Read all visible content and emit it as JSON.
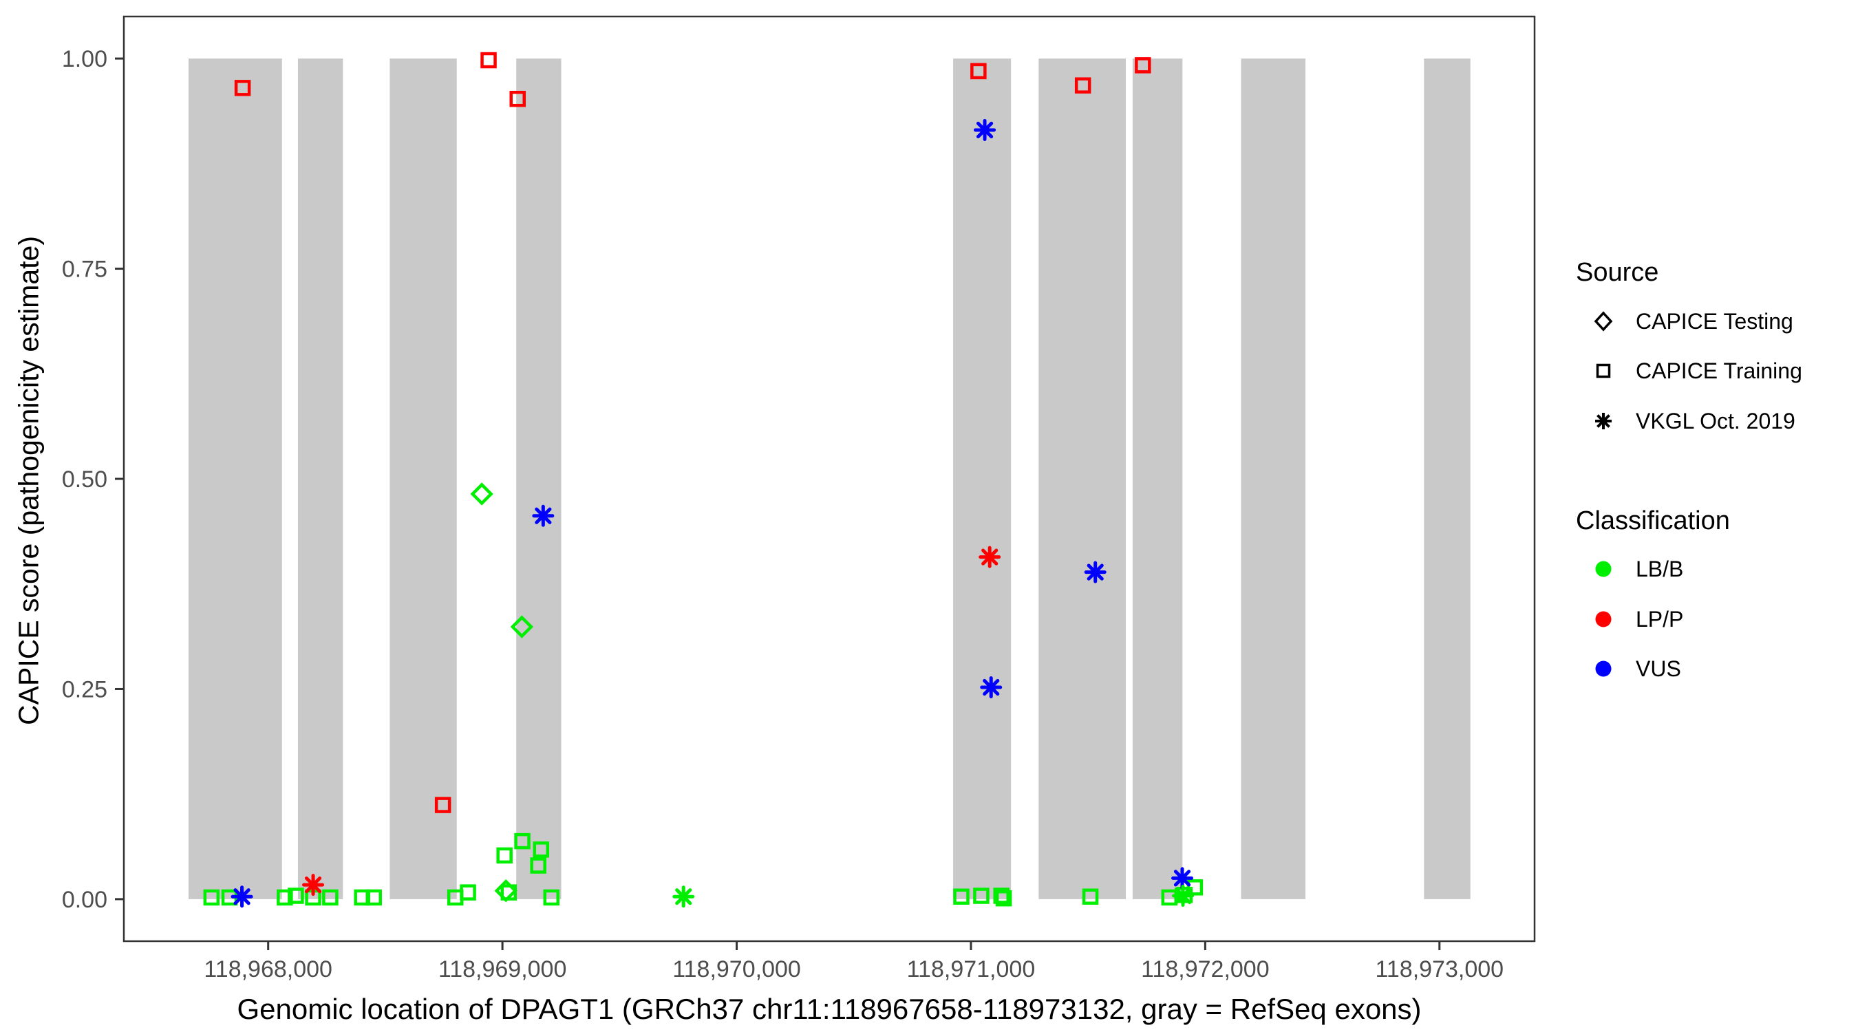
{
  "figure": {
    "background": "#ffffff",
    "panel_border_color": "#333333",
    "tick_label_color": "#4d4d4d",
    "exon_color": "#c9c9c9"
  },
  "chart_data": {
    "type": "scatter",
    "title": "",
    "xlabel": "Genomic location of DPAGT1 (GRCh37 chr11:118967658-118973132, gray = RefSeq exons)",
    "ylabel": "CAPICE score (pathogenicity estimate)",
    "xlim": [
      118967384,
      118973406
    ],
    "ylim": [
      -0.05,
      1.05
    ],
    "grid": false,
    "legend_position": "right",
    "x_ticks": [
      {
        "value": 118968000,
        "label": "118,968,000"
      },
      {
        "value": 118969000,
        "label": "118,969,000"
      },
      {
        "value": 118970000,
        "label": "118,970,000"
      },
      {
        "value": 118971000,
        "label": "118,971,000"
      },
      {
        "value": 118972000,
        "label": "118,972,000"
      },
      {
        "value": 118973000,
        "label": "118,973,000"
      }
    ],
    "y_ticks": [
      {
        "value": 0.0,
        "label": "0.00"
      },
      {
        "value": 0.25,
        "label": "0.25"
      },
      {
        "value": 0.5,
        "label": "0.50"
      },
      {
        "value": 0.75,
        "label": "0.75"
      },
      {
        "value": 1.0,
        "label": "1.00"
      }
    ],
    "exons": {
      "meaning": "gray = RefSeq exons",
      "color": "#c9c9c9",
      "ymin": 0,
      "ymax": 1,
      "ranges": [
        [
          118967660,
          118968059
        ],
        [
          118968127,
          118968319
        ],
        [
          118968519,
          118968805
        ],
        [
          118969059,
          118969251
        ],
        [
          118970924,
          118971171
        ],
        [
          118971289,
          118971661
        ],
        [
          118971690,
          118971903
        ],
        [
          118972153,
          118972428
        ],
        [
          118972934,
          118973132
        ]
      ]
    },
    "shape_by_source": {
      "CAPICE Testing": "diamond",
      "CAPICE Training": "square",
      "VKGL Oct. 2019": "asterisk"
    },
    "color_by_classification": {
      "LB/B": "#00ee00",
      "LP/P": "#ff0000",
      "VUS": "#0000ff"
    },
    "points": [
      {
        "x": 118967758,
        "y": 0.002,
        "source": "CAPICE Training",
        "classification": "LB/B"
      },
      {
        "x": 118967835,
        "y": 0.002,
        "source": "CAPICE Training",
        "classification": "LB/B"
      },
      {
        "x": 118968071,
        "y": 0.002,
        "source": "CAPICE Training",
        "classification": "LB/B"
      },
      {
        "x": 118968118,
        "y": 0.004,
        "source": "CAPICE Training",
        "classification": "LB/B"
      },
      {
        "x": 118968192,
        "y": 0.002,
        "source": "CAPICE Training",
        "classification": "LB/B"
      },
      {
        "x": 118968265,
        "y": 0.002,
        "source": "CAPICE Training",
        "classification": "LB/B"
      },
      {
        "x": 118968401,
        "y": 0.002,
        "source": "CAPICE Training",
        "classification": "LB/B"
      },
      {
        "x": 118968451,
        "y": 0.002,
        "source": "CAPICE Training",
        "classification": "LB/B"
      },
      {
        "x": 118968799,
        "y": 0.002,
        "source": "CAPICE Training",
        "classification": "LB/B"
      },
      {
        "x": 118968853,
        "y": 0.008,
        "source": "CAPICE Training",
        "classification": "LB/B"
      },
      {
        "x": 118969009,
        "y": 0.052,
        "source": "CAPICE Training",
        "classification": "LB/B"
      },
      {
        "x": 118969027,
        "y": 0.008,
        "source": "CAPICE Training",
        "classification": "LB/B"
      },
      {
        "x": 118969085,
        "y": 0.069,
        "source": "CAPICE Training",
        "classification": "LB/B"
      },
      {
        "x": 118969153,
        "y": 0.04,
        "source": "CAPICE Training",
        "classification": "LB/B"
      },
      {
        "x": 118969165,
        "y": 0.059,
        "source": "CAPICE Training",
        "classification": "LB/B"
      },
      {
        "x": 118969209,
        "y": 0.002,
        "source": "CAPICE Training",
        "classification": "LB/B"
      },
      {
        "x": 118970959,
        "y": 0.003,
        "source": "CAPICE Training",
        "classification": "LB/B"
      },
      {
        "x": 118971044,
        "y": 0.004,
        "source": "CAPICE Training",
        "classification": "LB/B"
      },
      {
        "x": 118971130,
        "y": 0.004,
        "source": "CAPICE Training",
        "classification": "LB/B"
      },
      {
        "x": 118971140,
        "y": 0.001,
        "source": "CAPICE Training",
        "classification": "LB/B"
      },
      {
        "x": 118971510,
        "y": 0.003,
        "source": "CAPICE Training",
        "classification": "LB/B"
      },
      {
        "x": 118971847,
        "y": 0.002,
        "source": "CAPICE Training",
        "classification": "LB/B"
      },
      {
        "x": 118971912,
        "y": 0.005,
        "source": "CAPICE Training",
        "classification": "LB/B"
      },
      {
        "x": 118971956,
        "y": 0.014,
        "source": "CAPICE Training",
        "classification": "LB/B"
      },
      {
        "x": 118967891,
        "y": 0.965,
        "source": "CAPICE Training",
        "classification": "LP/P"
      },
      {
        "x": 118968746,
        "y": 0.112,
        "source": "CAPICE Training",
        "classification": "LP/P"
      },
      {
        "x": 118968941,
        "y": 0.998,
        "source": "CAPICE Training",
        "classification": "LP/P"
      },
      {
        "x": 118969065,
        "y": 0.952,
        "source": "CAPICE Training",
        "classification": "LP/P"
      },
      {
        "x": 118971032,
        "y": 0.985,
        "source": "CAPICE Training",
        "classification": "LP/P"
      },
      {
        "x": 118971478,
        "y": 0.968,
        "source": "CAPICE Training",
        "classification": "LP/P"
      },
      {
        "x": 118971734,
        "y": 0.992,
        "source": "CAPICE Training",
        "classification": "LP/P"
      },
      {
        "x": 118968912,
        "y": 0.482,
        "source": "CAPICE Testing",
        "classification": "LB/B"
      },
      {
        "x": 118969015,
        "y": 0.01,
        "source": "CAPICE Testing",
        "classification": "LB/B"
      },
      {
        "x": 118969083,
        "y": 0.324,
        "source": "CAPICE Testing",
        "classification": "LB/B"
      },
      {
        "x": 118967888,
        "y": 0.003,
        "source": "VKGL Oct. 2019",
        "classification": "VUS"
      },
      {
        "x": 118968192,
        "y": 0.017,
        "source": "VKGL Oct. 2019",
        "classification": "LP/P"
      },
      {
        "x": 118969174,
        "y": 0.456,
        "source": "VKGL Oct. 2019",
        "classification": "VUS"
      },
      {
        "x": 118969773,
        "y": 0.003,
        "source": "VKGL Oct. 2019",
        "classification": "LB/B"
      },
      {
        "x": 118971059,
        "y": 0.915,
        "source": "VKGL Oct. 2019",
        "classification": "VUS"
      },
      {
        "x": 118971080,
        "y": 0.407,
        "source": "VKGL Oct. 2019",
        "classification": "LP/P"
      },
      {
        "x": 118971086,
        "y": 0.252,
        "source": "VKGL Oct. 2019",
        "classification": "VUS"
      },
      {
        "x": 118971531,
        "y": 0.389,
        "source": "VKGL Oct. 2019",
        "classification": "VUS"
      },
      {
        "x": 118971902,
        "y": 0.025,
        "source": "VKGL Oct. 2019",
        "classification": "VUS"
      },
      {
        "x": 118971905,
        "y": 0.004,
        "source": "VKGL Oct. 2019",
        "classification": "LB/B"
      }
    ]
  },
  "legend": {
    "source": {
      "title": "Source",
      "items": [
        {
          "label": "CAPICE Testing",
          "shape": "diamond"
        },
        {
          "label": "CAPICE Training",
          "shape": "square"
        },
        {
          "label": "VKGL Oct. 2019",
          "shape": "asterisk"
        }
      ]
    },
    "classification": {
      "title": "Classification",
      "items": [
        {
          "label": "LB/B",
          "color": "#00ee00"
        },
        {
          "label": "LP/P",
          "color": "#ff0000"
        },
        {
          "label": "VUS",
          "color": "#0000ff"
        }
      ]
    }
  }
}
